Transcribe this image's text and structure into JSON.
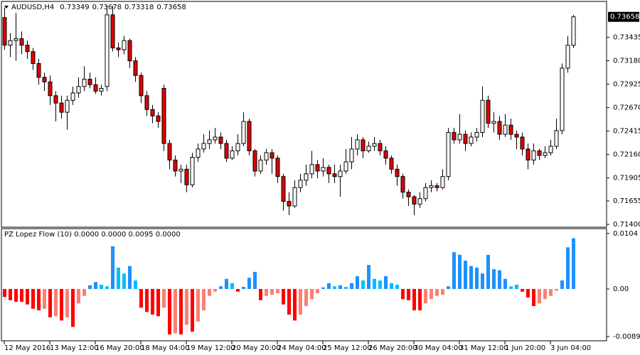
{
  "chart_data": [
    {
      "type": "candlestick",
      "title": "AUDUSD,H4",
      "categories": [
        "12 May 2016",
        null,
        null,
        null,
        null,
        null,
        null,
        null,
        "13 May 12:00",
        null,
        null,
        null,
        null,
        null,
        null,
        null,
        "16 May 20:00",
        null,
        null,
        null,
        null,
        null,
        null,
        null,
        "18 May 04:00",
        null,
        null,
        null,
        null,
        null,
        null,
        null,
        "19 May 12:00",
        null,
        null,
        null,
        null,
        null,
        null,
        null,
        "20 May 20:00",
        null,
        null,
        null,
        null,
        null,
        null,
        null,
        "24 May 04:00",
        null,
        null,
        null,
        null,
        null,
        null,
        null,
        "25 May 12:00",
        null,
        null,
        null,
        null,
        null,
        null,
        null,
        "26 May 20:00",
        null,
        null,
        null,
        null,
        null,
        null,
        null,
        "30 May 04:00",
        null,
        null,
        null,
        null,
        null,
        null,
        null,
        "31 May 12:00",
        null,
        null,
        null,
        null,
        null,
        null,
        null,
        "1 Jun 20:00",
        null,
        null,
        null,
        null,
        null,
        null,
        null,
        "3 Jun 04:00",
        null,
        null,
        null,
        null
      ],
      "open": [
        0.7365,
        0.7335,
        0.734,
        0.7342,
        0.7335,
        0.7328,
        0.7315,
        0.73,
        0.7295,
        0.728,
        0.7272,
        0.7262,
        0.7275,
        0.7283,
        0.729,
        0.7298,
        0.7292,
        0.7285,
        0.729,
        0.7368,
        0.7332,
        0.733,
        0.734,
        0.7318,
        0.7302,
        0.728,
        0.7265,
        0.7258,
        0.7288,
        0.7228,
        0.721,
        0.7198,
        0.72,
        0.7183,
        0.7213,
        0.7222,
        0.7228,
        0.7232,
        0.7235,
        0.7228,
        0.7212,
        0.722,
        0.7228,
        0.7252,
        0.722,
        0.7198,
        0.721,
        0.7218,
        0.7212,
        0.7192,
        0.7165,
        0.716,
        0.718,
        0.7188,
        0.7195,
        0.7205,
        0.7198,
        0.7202,
        0.7195,
        0.7192,
        0.7198,
        0.7208,
        0.7222,
        0.7232,
        0.722,
        0.7225,
        0.7228,
        0.722,
        0.7212,
        0.72,
        0.7192,
        0.7175,
        0.717,
        0.7162,
        0.7168,
        0.718,
        0.7182,
        0.718,
        0.7192,
        0.724,
        0.7232,
        0.7238,
        0.7228,
        0.7235,
        0.724,
        0.7275,
        0.725,
        0.7252,
        0.7238,
        0.7248,
        0.7238,
        0.7235,
        0.7222,
        0.721,
        0.722,
        0.7215,
        0.7218,
        0.7225,
        0.7242,
        0.731,
        0.73349
      ],
      "high": [
        0.7376,
        0.7348,
        0.737,
        0.735,
        0.734,
        0.7332,
        0.732,
        0.7305,
        0.7302,
        0.7285,
        0.728,
        0.728,
        0.729,
        0.73,
        0.7312,
        0.7305,
        0.73,
        0.7292,
        0.7378,
        0.7378,
        0.7338,
        0.7345,
        0.7342,
        0.7322,
        0.7305,
        0.7285,
        0.727,
        0.7262,
        0.7292,
        0.7232,
        0.7215,
        0.7205,
        0.7205,
        0.7218,
        0.7228,
        0.7238,
        0.7242,
        0.7245,
        0.724,
        0.7232,
        0.7225,
        0.7238,
        0.7262,
        0.7255,
        0.7222,
        0.7215,
        0.7222,
        0.7222,
        0.7215,
        0.7195,
        0.7175,
        0.7188,
        0.7195,
        0.7205,
        0.722,
        0.721,
        0.7212,
        0.7205,
        0.7205,
        0.7205,
        0.7222,
        0.7235,
        0.7238,
        0.7235,
        0.723,
        0.7235,
        0.7232,
        0.7225,
        0.7215,
        0.7205,
        0.7195,
        0.7178,
        0.7172,
        0.7175,
        0.7185,
        0.7188,
        0.7185,
        0.72,
        0.7245,
        0.7245,
        0.726,
        0.7242,
        0.724,
        0.7245,
        0.729,
        0.728,
        0.7262,
        0.7258,
        0.726,
        0.7255,
        0.7242,
        0.724,
        0.7228,
        0.7228,
        0.7222,
        0.7225,
        0.7232,
        0.7255,
        0.7315,
        0.7345,
        0.73678
      ],
      "low": [
        0.733,
        0.7322,
        0.7318,
        0.7325,
        0.732,
        0.7308,
        0.7292,
        0.7285,
        0.727,
        0.7252,
        0.7255,
        0.7243,
        0.727,
        0.7278,
        0.7285,
        0.7288,
        0.7282,
        0.728,
        0.7285,
        0.7328,
        0.7322,
        0.7325,
        0.731,
        0.7295,
        0.7272,
        0.7258,
        0.725,
        0.7245,
        0.722,
        0.72,
        0.7192,
        0.7185,
        0.7175,
        0.718,
        0.7208,
        0.7218,
        0.7222,
        0.7228,
        0.7222,
        0.7208,
        0.721,
        0.7215,
        0.7225,
        0.7215,
        0.7192,
        0.7195,
        0.7205,
        0.7195,
        0.7185,
        0.7155,
        0.715,
        0.7158,
        0.7175,
        0.7182,
        0.719,
        0.719,
        0.7192,
        0.7185,
        0.7185,
        0.717,
        0.7195,
        0.72,
        0.7215,
        0.7212,
        0.7218,
        0.722,
        0.7215,
        0.7205,
        0.7195,
        0.7182,
        0.7168,
        0.716,
        0.715,
        0.7158,
        0.7165,
        0.7175,
        0.7176,
        0.7178,
        0.7188,
        0.7228,
        0.7228,
        0.722,
        0.7225,
        0.723,
        0.7235,
        0.7245,
        0.724,
        0.7232,
        0.7235,
        0.7232,
        0.7222,
        0.7215,
        0.72,
        0.7205,
        0.721,
        0.7212,
        0.7215,
        0.7222,
        0.7238,
        0.7305,
        0.73318
      ],
      "close": [
        0.7335,
        0.734,
        0.7342,
        0.7335,
        0.7328,
        0.7315,
        0.73,
        0.7295,
        0.728,
        0.7272,
        0.7262,
        0.7275,
        0.7283,
        0.729,
        0.7298,
        0.7292,
        0.7285,
        0.7288,
        0.7368,
        0.7332,
        0.733,
        0.734,
        0.7318,
        0.7302,
        0.728,
        0.7265,
        0.7258,
        0.7252,
        0.7228,
        0.721,
        0.7198,
        0.72,
        0.7183,
        0.7213,
        0.7222,
        0.7228,
        0.7232,
        0.7235,
        0.7228,
        0.7212,
        0.722,
        0.7228,
        0.7252,
        0.722,
        0.7198,
        0.721,
        0.7218,
        0.7212,
        0.7192,
        0.7165,
        0.716,
        0.718,
        0.7188,
        0.7195,
        0.7205,
        0.7198,
        0.7202,
        0.7195,
        0.7192,
        0.7198,
        0.7208,
        0.7222,
        0.7232,
        0.722,
        0.7225,
        0.7228,
        0.722,
        0.7212,
        0.72,
        0.7192,
        0.7175,
        0.717,
        0.7162,
        0.7168,
        0.718,
        0.7182,
        0.718,
        0.7192,
        0.724,
        0.7232,
        0.7238,
        0.7228,
        0.7235,
        0.724,
        0.7275,
        0.725,
        0.7252,
        0.7238,
        0.7248,
        0.7238,
        0.7235,
        0.7222,
        0.721,
        0.722,
        0.7215,
        0.7218,
        0.7225,
        0.7242,
        0.731,
        0.73349,
        0.73658
      ],
      "up_color": "#ffffff",
      "down_color": "#e00000",
      "wick_color": "#000000",
      "ylim": [
        0.71369,
        0.73826
      ],
      "yticks": [
        {
          "value": 0.714,
          "label": "0.71400"
        },
        0.71655,
        0.71905,
        {
          "value": 0.7216,
          "label": "0.72160"
        },
        0.72415,
        {
          "value": 0.7267,
          "label": "0.72670"
        },
        0.72925,
        {
          "value": 0.7318,
          "label": "0.73180"
        },
        0.73435
      ]
    },
    {
      "type": "bar",
      "title": "PZ Lopez Flow (10) 0.0000 0.0000 0.0095 0.0000",
      "values": [
        -0.0015,
        -0.0021,
        -0.0024,
        -0.0024,
        -0.0029,
        -0.0037,
        -0.004,
        -0.0037,
        -0.0053,
        -0.0051,
        -0.0059,
        -0.0053,
        -0.0071,
        -0.0027,
        -0.0013,
        0.0007,
        0.0013,
        0.0008,
        0.0005,
        0.008,
        0.004,
        0.0029,
        0.0043,
        0.0016,
        -0.0035,
        -0.0043,
        -0.0048,
        -0.0051,
        -0.0035,
        -0.0085,
        -0.0083,
        -0.0085,
        -0.0067,
        -0.008,
        -0.0061,
        -0.004,
        -0.0013,
        -0.0005,
        0.0005,
        0.0019,
        0.0011,
        -0.0005,
        0.0004,
        0.0021,
        0.0032,
        -0.0021,
        -0.0013,
        -0.0011,
        -0.0008,
        -0.0029,
        -0.0048,
        -0.0059,
        -0.0048,
        -0.0032,
        -0.0019,
        -0.0008,
        0.0003,
        0.0011,
        0.0005,
        0.0007,
        0.0004,
        0.0011,
        0.0024,
        0.0016,
        0.0045,
        0.0019,
        0.0016,
        0.0024,
        0.0011,
        0.0008,
        -0.0019,
        -0.0021,
        -0.004,
        -0.004,
        -0.0027,
        -0.0019,
        -0.0013,
        -0.0011,
        0.0005,
        0.0069,
        0.0064,
        0.0053,
        0.0043,
        0.004,
        0.0029,
        0.0064,
        0.0037,
        0.0035,
        0.0019,
        0.0005,
        0.0008,
        -0.0005,
        -0.0016,
        -0.0032,
        -0.0027,
        -0.0019,
        -0.0013,
        -0.0003,
        0.0016,
        0.0078,
        0.0095
      ],
      "colors": [
        "#ff0000",
        "#ff0000",
        "#ff0000",
        "#ff0000",
        "#ff0000",
        "#ff0000",
        "#ff0000",
        "#fa8072",
        "#ff0000",
        "#fa8072",
        "#ff0000",
        "#fa8072",
        "#ff0000",
        "#fa8072",
        "#fa8072",
        "#1e90ff",
        "#1e90ff",
        "#00bfff",
        "#00bfff",
        "#1e90ff",
        "#00bfff",
        "#00bfff",
        "#1e90ff",
        "#00bfff",
        "#ff0000",
        "#ff0000",
        "#ff0000",
        "#ff0000",
        "#fa8072",
        "#ff0000",
        "#fa8072",
        "#ff0000",
        "#fa8072",
        "#ff0000",
        "#fa8072",
        "#fa8072",
        "#fa8072",
        "#fa8072",
        "#1e90ff",
        "#1e90ff",
        "#00bfff",
        "#ff0000",
        "#1e90ff",
        "#1e90ff",
        "#1e90ff",
        "#ff0000",
        "#fa8072",
        "#fa8072",
        "#fa8072",
        "#ff0000",
        "#ff0000",
        "#ff0000",
        "#fa8072",
        "#fa8072",
        "#fa8072",
        "#fa8072",
        "#1e90ff",
        "#1e90ff",
        "#00bfff",
        "#1e90ff",
        "#00bfff",
        "#1e90ff",
        "#1e90ff",
        "#00bfff",
        "#1e90ff",
        "#00bfff",
        "#00bfff",
        "#1e90ff",
        "#00bfff",
        "#00bfff",
        "#ff0000",
        "#ff0000",
        "#ff0000",
        "#ff0000",
        "#fa8072",
        "#fa8072",
        "#fa8072",
        "#fa8072",
        "#1e90ff",
        "#1e90ff",
        "#1e90ff",
        "#1e90ff",
        "#1e90ff",
        "#1e90ff",
        "#1e90ff",
        "#1e90ff",
        "#1e90ff",
        "#1e90ff",
        "#1e90ff",
        "#00bfff",
        "#00bfff",
        "#ff0000",
        "#ff0000",
        "#ff0000",
        "#fa8072",
        "#fa8072",
        "#fa8072",
        "#fa8072",
        "#1e90ff",
        "#1e90ff",
        "#1e90ff"
      ],
      "ylim": [
        -0.0097,
        0.0113
      ],
      "yticks": [
        -0.0089,
        {
          "value": 0,
          "label": "0.00"
        },
        0.0104
      ]
    }
  ]
}
